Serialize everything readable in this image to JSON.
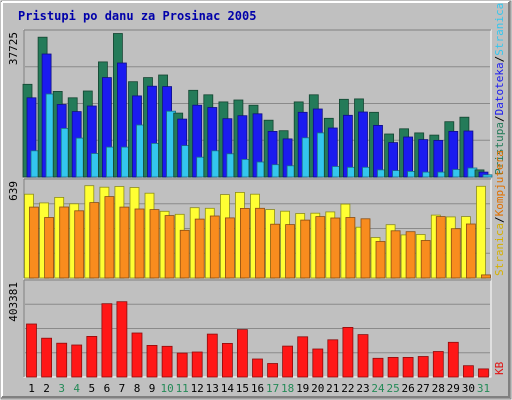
{
  "chart_data": {
    "type": "bar",
    "title": "Pristupi po danu za Prosinac 2005",
    "categories": [
      "1",
      "2",
      "3",
      "4",
      "5",
      "6",
      "7",
      "8",
      "9",
      "10",
      "11",
      "12",
      "13",
      "14",
      "15",
      "16",
      "17",
      "18",
      "19",
      "20",
      "21",
      "22",
      "23",
      "24",
      "25",
      "26",
      "27",
      "28",
      "29",
      "30",
      "31"
    ],
    "weekend_days": [
      "3",
      "4",
      "10",
      "11",
      "17",
      "18",
      "24",
      "25",
      "31"
    ],
    "panels": [
      {
        "id": "top",
        "ymax_label": "37725",
        "ymax": 37725,
        "legend": [
          {
            "text": "Pristupa",
            "color": "#247b59"
          },
          {
            "text": "/",
            "color": "#000000"
          },
          {
            "text": "Datoteka",
            "color": "#1b1bf0"
          },
          {
            "text": "/",
            "color": "#000000"
          },
          {
            "text": "Stranica",
            "color": "#33c6ee"
          }
        ],
        "series": [
          {
            "name": "Pristupa",
            "color": "#247b59",
            "values": [
              24800,
              37400,
              22900,
              21200,
              23000,
              30800,
              38400,
              25500,
              26600,
              27300,
              17100,
              23200,
              22000,
              20100,
              20600,
              19200,
              15200,
              12400,
              20100,
              22000,
              15700,
              20800,
              20900,
              17300,
              11500,
              12900,
              11800,
              11200,
              14800,
              16000,
              1900
            ]
          },
          {
            "name": "Datoteka",
            "color": "#1b1bf0",
            "values": [
              21200,
              32900,
              19400,
              17500,
              19000,
              26600,
              30500,
              21700,
              24300,
              24200,
              15500,
              19200,
              18600,
              15600,
              16400,
              16900,
              12200,
              10200,
              17300,
              18200,
              13100,
              16500,
              17400,
              13800,
              9200,
              10700,
              10000,
              9800,
              12200,
              12300,
              1300
            ]
          },
          {
            "name": "Stranica",
            "color": "#33c6ee",
            "values": [
              7000,
              22200,
              13000,
              10400,
              6300,
              8000,
              8000,
              13900,
              9000,
              17600,
              8400,
              5300,
              7000,
              6200,
              4700,
              4000,
              3300,
              3000,
              10500,
              11800,
              2800,
              2600,
              2600,
              1900,
              1700,
              1500,
              1300,
              1300,
              2000,
              2400,
              600
            ]
          }
        ]
      },
      {
        "id": "middle",
        "ymax_label": "639",
        "ymax": 639,
        "legend": [
          {
            "text": "Stranica",
            "color": "#d5b000"
          },
          {
            "text": "/",
            "color": "#000000"
          },
          {
            "text": "Kompjutera",
            "color": "#e07000"
          }
        ],
        "series": [
          {
            "name": "Stranica",
            "color": "#ffff33",
            "values": [
              576,
              516,
              554,
              510,
              634,
              624,
              629,
              622,
              583,
              458,
              438,
              483,
              479,
              573,
              588,
              576,
              470,
              459,
              443,
              445,
              454,
              508,
              349,
              278,
              366,
              296,
              299,
              432,
              420,
              422,
              630
            ]
          },
          {
            "name": "Kompjutera",
            "color": "#f98c1e",
            "values": [
              487,
              416,
              488,
              462,
              518,
              559,
              487,
              474,
              470,
              429,
              328,
              405,
              426,
              413,
              478,
              479,
              370,
              367,
              398,
              422,
              412,
              416,
              407,
              251,
              324,
              318,
              258,
              422,
              339,
              371,
              21
            ]
          }
        ]
      },
      {
        "id": "bottom",
        "ymax_label": "403381",
        "ymax": 403381,
        "legend": [
          {
            "text": "KB",
            "color": "#e01212"
          }
        ],
        "series": [
          {
            "name": "KB",
            "color": "#ff1717",
            "values": [
              235000,
              172000,
              150000,
              142000,
              180000,
              325000,
              334000,
              195000,
              140000,
              136000,
              106000,
              111000,
              190000,
              149000,
              210000,
              80000,
              60000,
              137000,
              178000,
              124000,
              165000,
              220000,
              188000,
              83000,
              87000,
              87000,
              91000,
              113000,
              154000,
              50000,
              36000
            ]
          }
        ]
      }
    ]
  }
}
